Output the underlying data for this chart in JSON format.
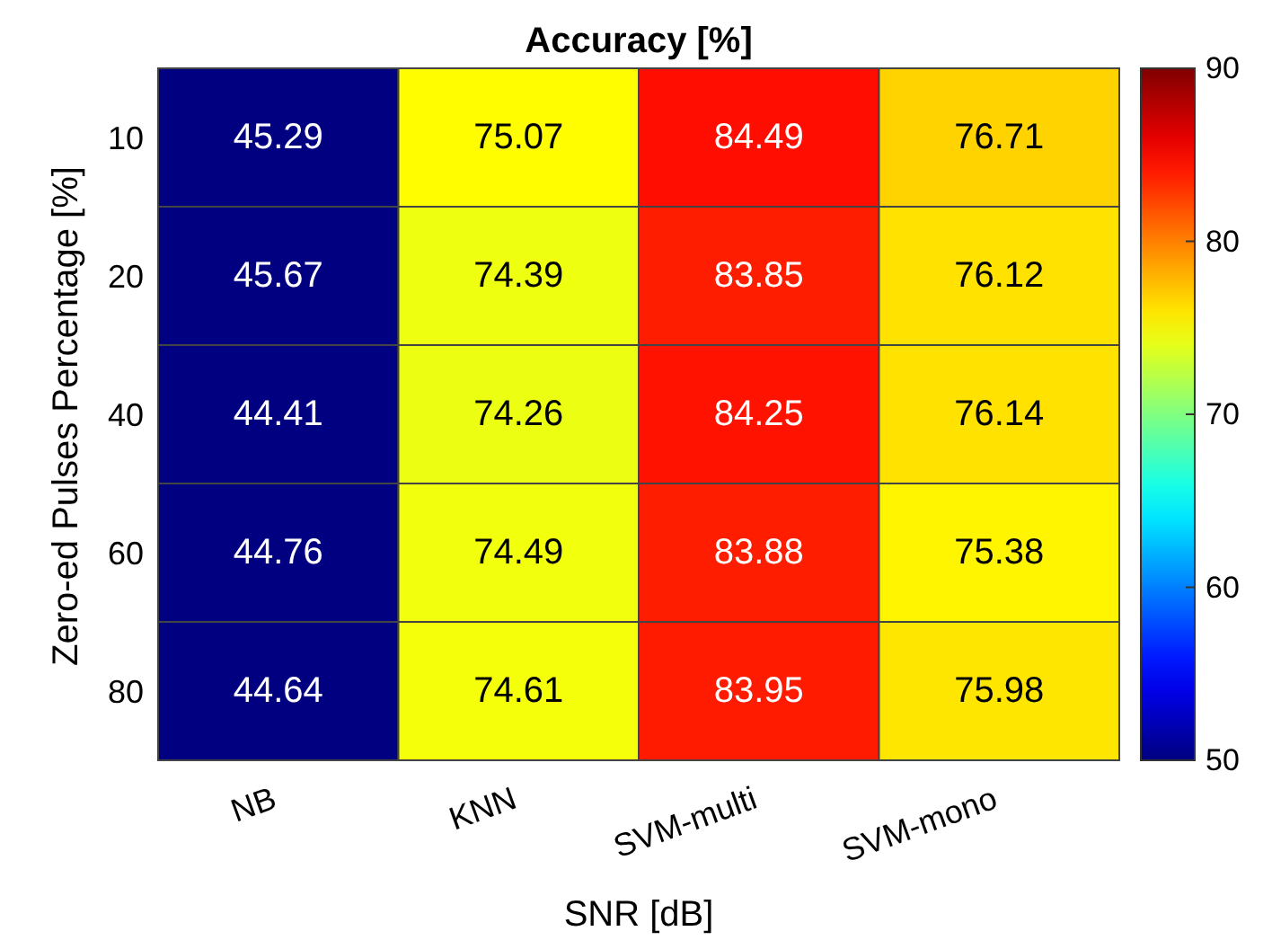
{
  "chart_data": {
    "type": "heatmap",
    "title": "Accuracy [%]",
    "xlabel": "SNR [dB]",
    "ylabel": "Zero-ed Pulses Percentage [%]",
    "categories": [
      "NB",
      "KNN",
      "SVM-multi",
      "SVM-mono"
    ],
    "y_categories": [
      "10",
      "20",
      "40",
      "60",
      "80"
    ],
    "cells": [
      [
        45.29,
        75.07,
        84.49,
        76.71
      ],
      [
        45.67,
        74.39,
        83.85,
        76.12
      ],
      [
        44.41,
        74.26,
        84.25,
        76.14
      ],
      [
        44.76,
        74.49,
        83.88,
        75.38
      ],
      [
        44.64,
        74.61,
        83.95,
        75.98
      ]
    ],
    "clim": [
      50,
      90
    ],
    "cticks": [
      50,
      60,
      70,
      80,
      90
    ],
    "data_labels": true
  }
}
